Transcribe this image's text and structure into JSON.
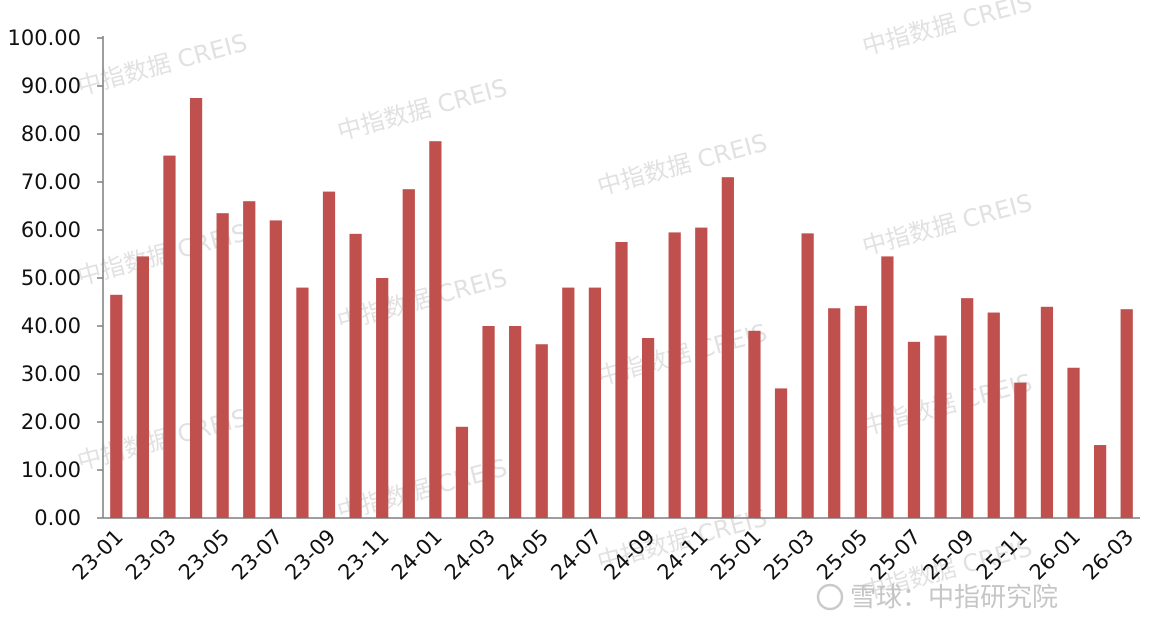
{
  "chart_data": {
    "type": "bar",
    "title": "",
    "xlabel": "",
    "ylabel": "",
    "ylim": [
      0,
      100
    ],
    "yticks": [
      "0.00",
      "10.00",
      "20.00",
      "30.00",
      "40.00",
      "50.00",
      "60.00",
      "70.00",
      "80.00",
      "90.00",
      "100.00"
    ],
    "grid": false,
    "categories": [
      "23-01",
      "23-02",
      "23-03",
      "23-04",
      "23-05",
      "23-06",
      "23-07",
      "23-08",
      "23-09",
      "23-10",
      "23-11",
      "23-12",
      "24-01",
      "24-02",
      "24-03",
      "24-04",
      "24-05",
      "24-06",
      "24-07",
      "24-08",
      "24-09",
      "24-10",
      "24-11",
      "24-12",
      "25-01",
      "25-02",
      "25-03",
      "25-04",
      "25-05",
      "25-06",
      "25-07",
      "25-08",
      "25-09",
      "25-10",
      "25-11",
      "25-12",
      "26-01",
      "26-02",
      "26-03"
    ],
    "xtick_labels": [
      "23-01",
      "23-03",
      "23-05",
      "23-07",
      "23-09",
      "23-11",
      "24-01",
      "24-03",
      "24-05",
      "24-07",
      "24-09",
      "24-11",
      "25-01",
      "25-03",
      "25-05",
      "25-07",
      "25-09",
      "25-11",
      "26-01",
      "26-03"
    ],
    "values": [
      46.5,
      54.5,
      75.5,
      87.5,
      63.5,
      66.0,
      62.0,
      48.0,
      68.0,
      59.2,
      50.0,
      68.5,
      78.5,
      19.0,
      40.0,
      40.0,
      36.2,
      48.0,
      48.0,
      57.5,
      37.5,
      59.5,
      60.5,
      71.0,
      39.0,
      27.0,
      59.3,
      43.7,
      44.2,
      54.5,
      36.7,
      38.0,
      45.8,
      42.8,
      28.2,
      44.0,
      31.3,
      15.2,
      43.5
    ],
    "bar_color": "#c0504d"
  },
  "watermark": {
    "text": "中指数据 CREIS"
  },
  "footer": {
    "text": "雪球：中指研究院"
  }
}
